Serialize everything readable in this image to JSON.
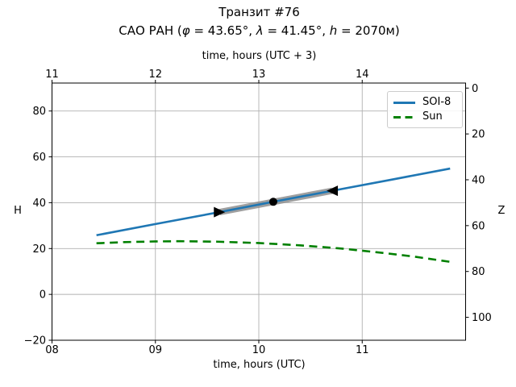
{
  "title": {
    "line1": "Транзит #76",
    "line2_parts": {
      "pre": "САО РАН (",
      "phi": "φ",
      "seg1": " = 43.65°, ",
      "lambda": "λ",
      "seg2": " = 41.45°, ",
      "h": "h",
      "seg3": " = 2070м)"
    }
  },
  "legend": {
    "position": "upper right",
    "items": [
      {
        "label": "SOI-8",
        "color": "#1f77b4",
        "line_style": "solid"
      },
      {
        "label": "Sun",
        "color": "#008000",
        "line_style": "dashed"
      }
    ]
  },
  "axes": {
    "x_bottom": {
      "label": "time, hours (UTC)",
      "ticks": [
        {
          "v": 8,
          "t": "08"
        },
        {
          "v": 9,
          "t": "09"
        },
        {
          "v": 10,
          "t": "10"
        },
        {
          "v": 11,
          "t": "11"
        }
      ]
    },
    "x_top": {
      "label": "time, hours (UTC + 3)",
      "ticks": [
        {
          "v": 8,
          "t": "11"
        },
        {
          "v": 9,
          "t": "12"
        },
        {
          "v": 10,
          "t": "13"
        },
        {
          "v": 11,
          "t": "14"
        }
      ]
    },
    "y_left": {
      "label": "H",
      "ticks": [
        {
          "v": -20,
          "t": "−20"
        },
        {
          "v": 0,
          "t": "0"
        },
        {
          "v": 20,
          "t": "20"
        },
        {
          "v": 40,
          "t": "40"
        },
        {
          "v": 60,
          "t": "60"
        },
        {
          "v": 80,
          "t": "80"
        }
      ]
    },
    "y_right": {
      "label": "Z",
      "ticks": [
        {
          "v": 90,
          "t": "0"
        },
        {
          "v": 70,
          "t": "20"
        },
        {
          "v": 50,
          "t": "40"
        },
        {
          "v": 30,
          "t": "60"
        },
        {
          "v": 10,
          "t": "80"
        },
        {
          "v": -10,
          "t": "100"
        }
      ]
    }
  },
  "chart_data": {
    "type": "line",
    "title": "Транзит #76 — САО РАН (φ = 43.65°, λ = 41.45°, h = 2070м)",
    "xlabel": "time, hours (UTC)",
    "xlabel_secondary": "time, hours (UTC + 3)",
    "ylabel": "H",
    "ylabel_secondary": "Z",
    "xlim": [
      8,
      12
    ],
    "ylim": [
      -20,
      92.2
    ],
    "y_right_relation": "Z = 90 - H",
    "grid": true,
    "grid_color": "#b0b0b0",
    "legend_position": "upper right",
    "series": [
      {
        "name": "SOI-8",
        "color": "#1f77b4",
        "line_style": "solid",
        "x": [
          8.43,
          9.0,
          9.62,
          10.14,
          10.71,
          11.3,
          11.85
        ],
        "values": [
          25.8,
          30.7,
          35.9,
          40.4,
          45.2,
          50.2,
          54.9
        ]
      },
      {
        "name": "Sun",
        "color": "#008000",
        "line_style": "dashed",
        "x": [
          8.43,
          8.7,
          9.0,
          9.24,
          9.6,
          10.0,
          10.4,
          10.8,
          11.2,
          11.5,
          11.85
        ],
        "values": [
          22.3,
          22.8,
          23.1,
          23.2,
          23.0,
          22.4,
          21.4,
          20.0,
          18.1,
          16.5,
          14.2
        ]
      }
    ],
    "transit_markers": {
      "start": {
        "t_utc": 9.62,
        "H": 35.9,
        "marker": "right-triangle",
        "color": "#000000"
      },
      "middle": {
        "t_utc": 10.14,
        "H": 40.4,
        "marker": "dot",
        "color": "#000000"
      },
      "end": {
        "t_utc": 10.71,
        "H": 45.2,
        "marker": "left-triangle",
        "color": "#000000"
      },
      "band": {
        "from": 9.62,
        "to": 10.71,
        "color": "#8f8f8f"
      }
    }
  }
}
